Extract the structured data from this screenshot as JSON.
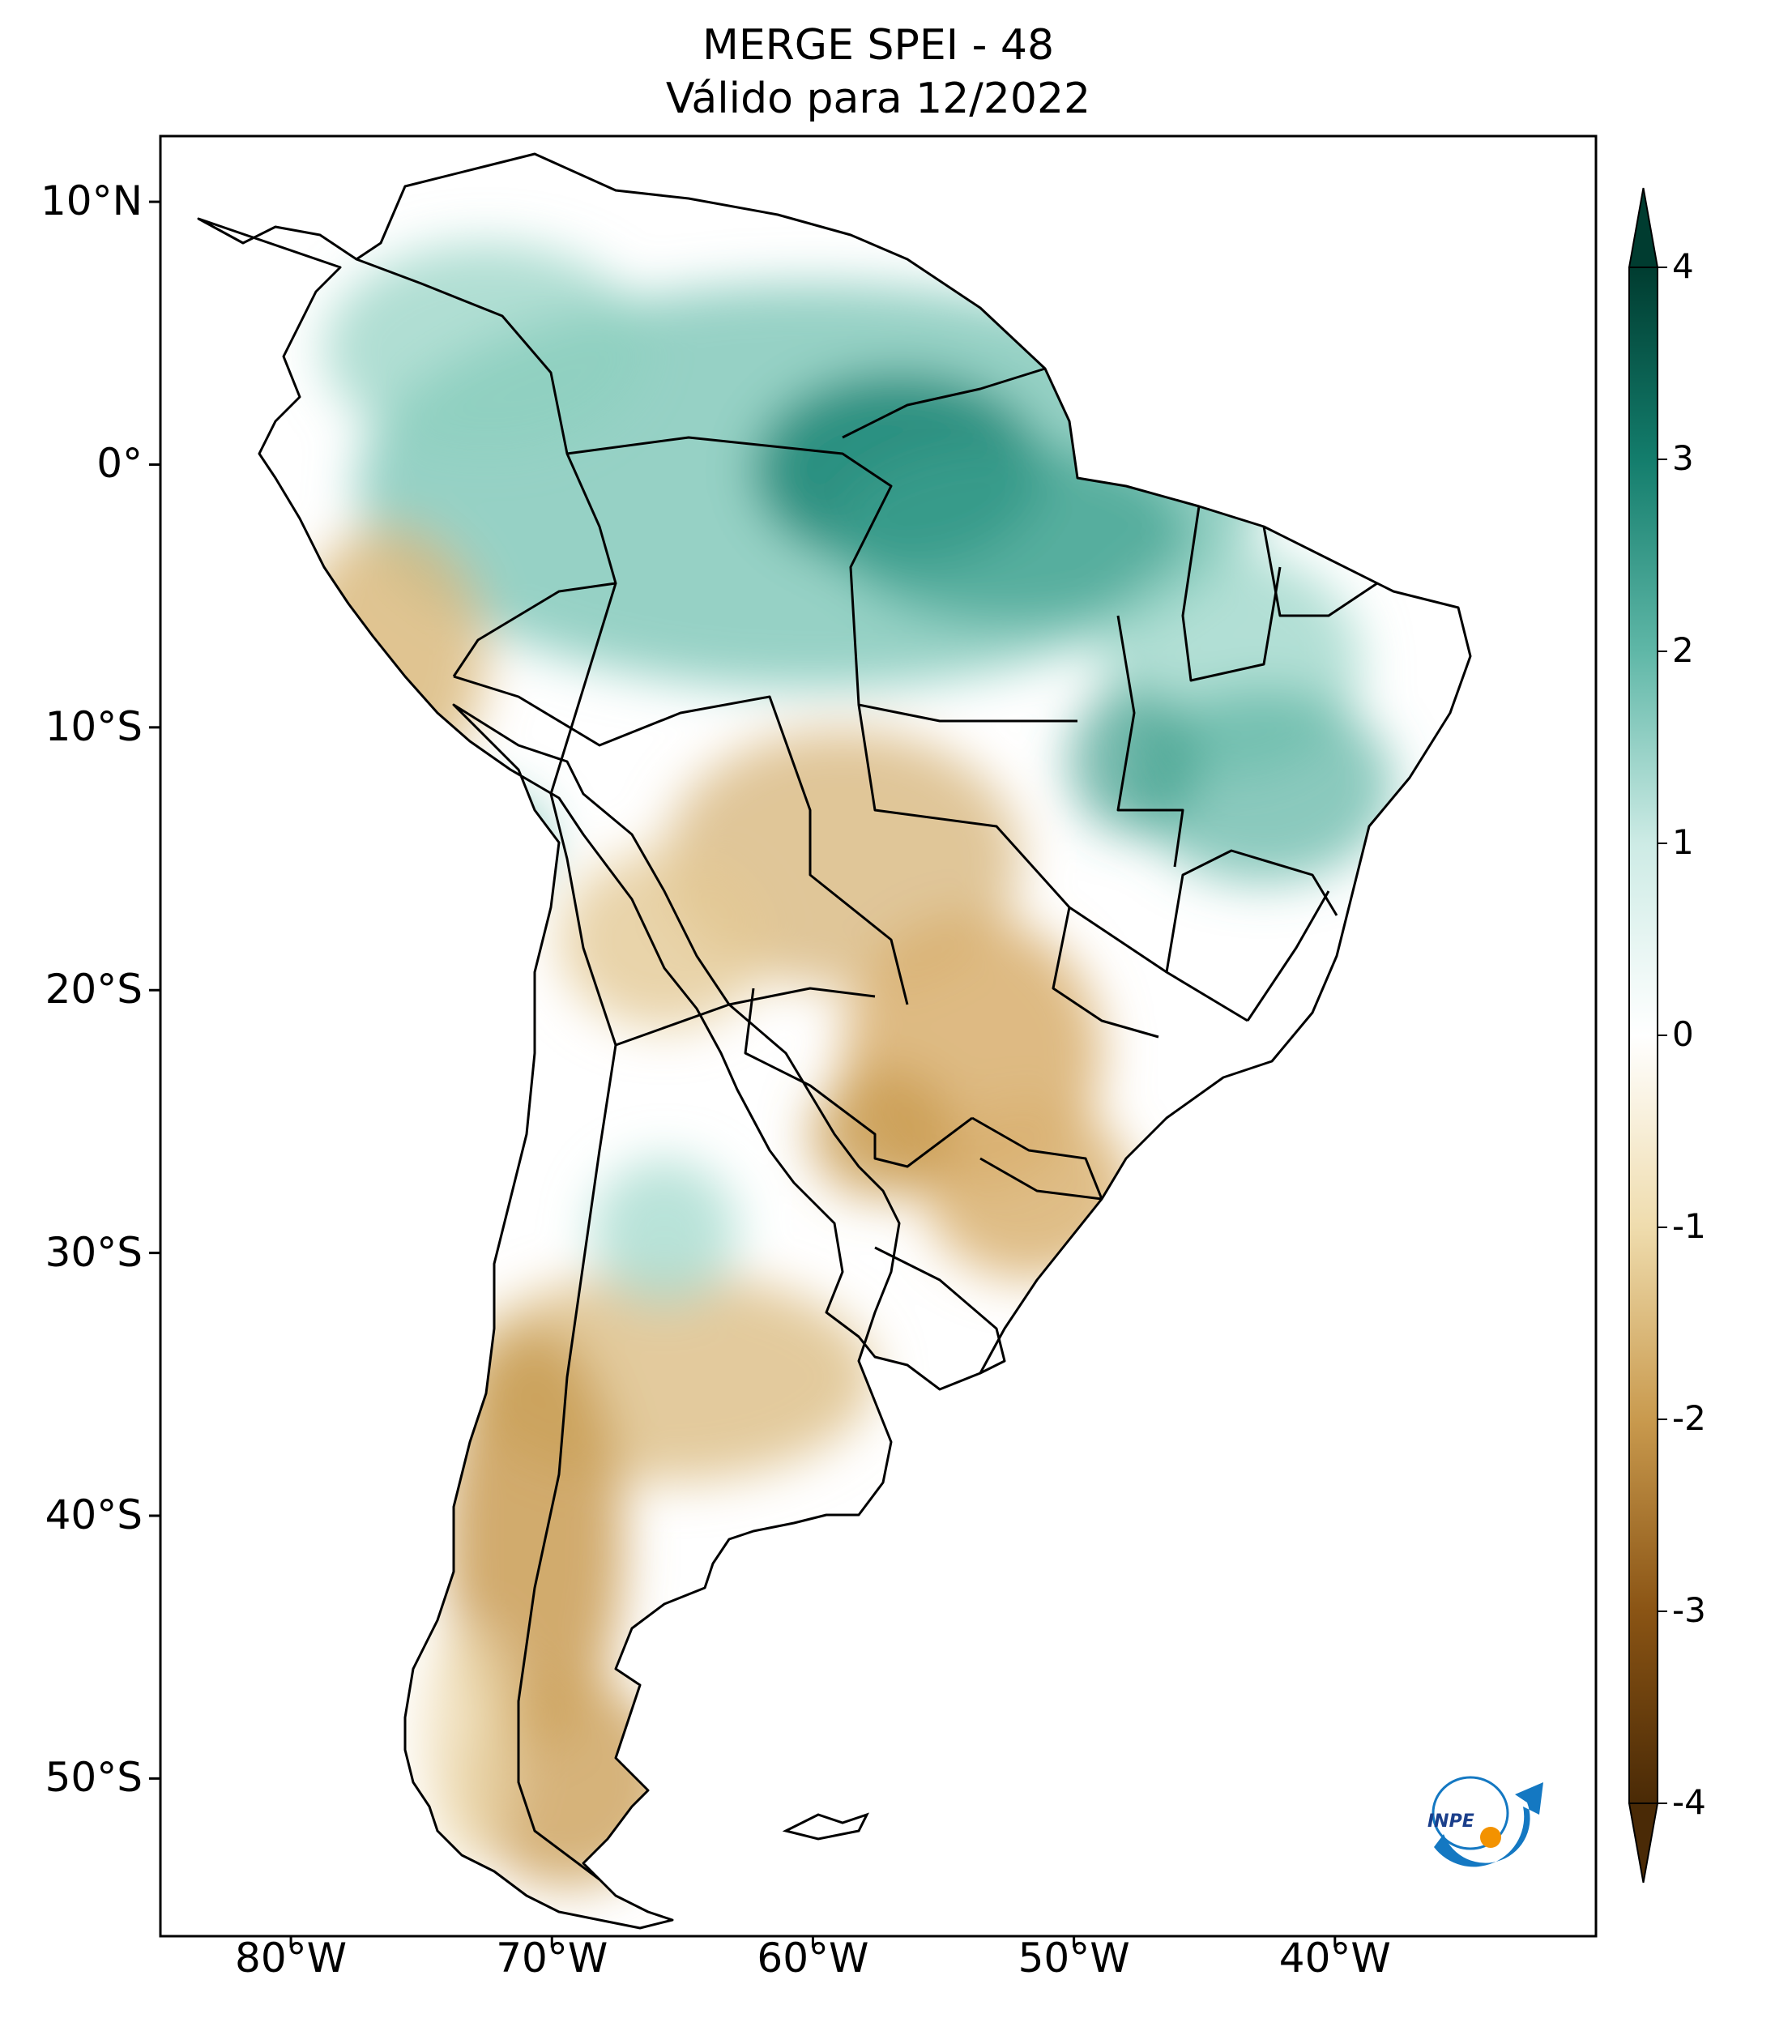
{
  "title": {
    "line1": "MERGE   SPEI - 48",
    "line2": "Válido para 12/2022"
  },
  "lat_ticks": [
    {
      "label": "10°N",
      "value": 10
    },
    {
      "label": "0°",
      "value": 0
    },
    {
      "label": "10°S",
      "value": -10
    },
    {
      "label": "20°S",
      "value": -20
    },
    {
      "label": "30°S",
      "value": -30
    },
    {
      "label": "40°S",
      "value": -40
    },
    {
      "label": "50°S",
      "value": -50
    }
  ],
  "lon_ticks": [
    {
      "label": "80°W",
      "value": -80
    },
    {
      "label": "70°W",
      "value": -70
    },
    {
      "label": "60°W",
      "value": -60
    },
    {
      "label": "50°W",
      "value": -50
    },
    {
      "label": "40°W",
      "value": -40
    }
  ],
  "extent": {
    "lon_min": -85,
    "lon_max": -30,
    "lat_min": -56,
    "lat_max": 12.5
  },
  "colorbar": {
    "ticks": [
      {
        "label": "4",
        "value": 4
      },
      {
        "label": "3",
        "value": 3
      },
      {
        "label": "2",
        "value": 2
      },
      {
        "label": "1",
        "value": 1
      },
      {
        "label": "0",
        "value": 0
      },
      {
        "label": "-1",
        "value": -1
      },
      {
        "label": "-2",
        "value": -2
      },
      {
        "label": "-3",
        "value": -3
      },
      {
        "label": "-4",
        "value": -4
      }
    ],
    "min": -4,
    "max": 4,
    "extend": "both",
    "colors": [
      "#4a2a06",
      "#8a5414",
      "#c99a4e",
      "#efdcad",
      "#ffffff",
      "#cdebe5",
      "#5fb7a7",
      "#137d6c",
      "#003c30"
    ]
  },
  "logo": {
    "text": "INPE",
    "colors": [
      "#1478c2",
      "#f39200"
    ]
  }
}
